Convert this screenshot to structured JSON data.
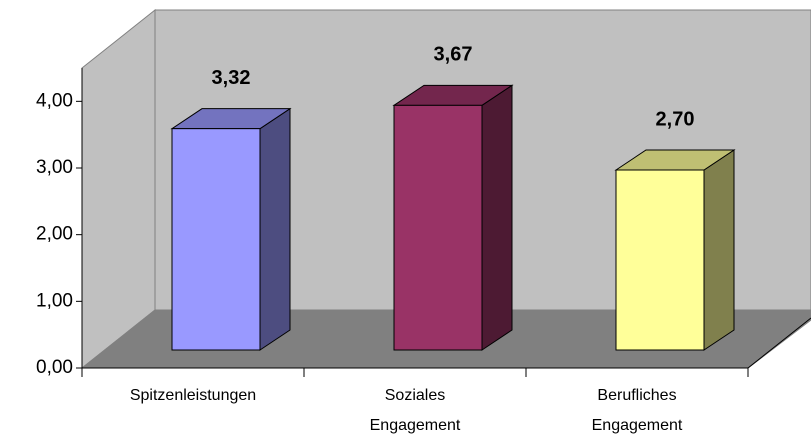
{
  "chart_data": {
    "type": "bar3d",
    "categories": [
      "Spitzenleistungen",
      "Soziales Engagement",
      "Berufliches Engagement"
    ],
    "values": [
      3.32,
      3.67,
      2.7
    ],
    "value_labels": [
      "3,32",
      "3,67",
      "2,70"
    ],
    "colors": [
      "#9999ff",
      "#993366",
      "#ffff99"
    ],
    "ylim": [
      0,
      4.5
    ],
    "yticks": [
      {
        "value": 0,
        "label": "0,00"
      },
      {
        "value": 1,
        "label": "1,00"
      },
      {
        "value": 2,
        "label": "2,00"
      },
      {
        "value": 3,
        "label": "3,00"
      },
      {
        "value": 4,
        "label": "4,00"
      }
    ]
  }
}
